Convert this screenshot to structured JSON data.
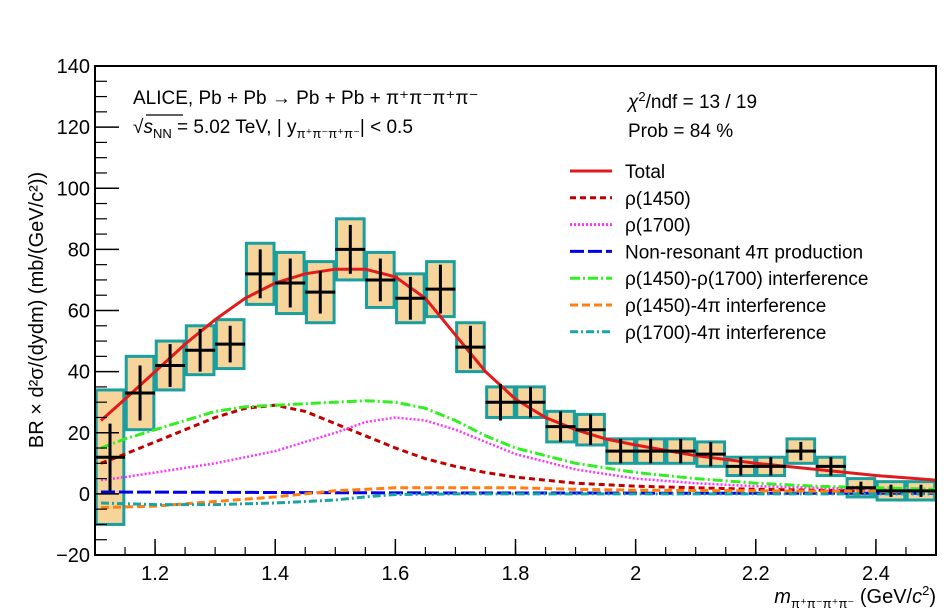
{
  "chart_data": {
    "type": "line",
    "xlabel_parts": [
      "m",
      "π⁺π⁻π⁺π⁻",
      " (GeV/",
      "c",
      "2",
      ")"
    ],
    "ylabel": "BR × d²σ/(dydm) (mb/(GeV/c²))",
    "xlim": [
      1.1,
      2.5
    ],
    "ylim": [
      -20,
      140
    ],
    "xticks": [
      1.2,
      1.4,
      1.6,
      1.8,
      2,
      2.2,
      2.4
    ],
    "yticks": [
      -20,
      0,
      20,
      40,
      60,
      80,
      100,
      120,
      140
    ],
    "grid": false,
    "annotations": {
      "line1": "ALICE, Pb + Pb → Pb + Pb + π⁺π⁻π⁺π⁻",
      "line2_parts": [
        "√",
        "s",
        "NN",
        " = 5.02 TeV, | y",
        "π⁺π⁻π⁺π⁻",
        "| < 0.5"
      ],
      "chi2_parts": [
        "χ",
        "2",
        "/ndf = 13 / 19"
      ],
      "prob": "Prob = 84 %"
    },
    "data_points": {
      "x": [
        1.125,
        1.175,
        1.225,
        1.275,
        1.325,
        1.375,
        1.425,
        1.475,
        1.525,
        1.575,
        1.625,
        1.675,
        1.725,
        1.775,
        1.825,
        1.875,
        1.925,
        1.975,
        2.025,
        2.075,
        2.125,
        2.175,
        2.225,
        2.275,
        2.325,
        2.375,
        2.425,
        2.475
      ],
      "y": [
        12,
        33,
        42,
        47,
        49,
        72,
        69,
        66,
        80,
        70,
        64,
        67,
        48,
        30,
        30,
        22,
        21,
        14,
        14,
        14,
        13,
        9,
        9,
        14,
        9,
        2,
        1,
        1
      ],
      "stat": [
        11,
        9,
        7,
        7,
        6,
        8,
        8,
        7,
        8,
        7,
        7,
        8,
        7,
        6,
        5,
        5,
        5,
        4,
        4,
        4,
        4,
        3,
        3,
        3,
        3,
        2,
        2,
        2
      ],
      "sys": [
        22,
        12,
        8,
        8,
        8,
        10,
        10,
        10,
        10,
        9,
        8,
        9,
        8,
        5,
        5,
        5,
        5,
        4,
        4,
        4,
        4,
        3,
        3,
        4,
        3,
        3,
        3,
        3
      ]
    },
    "series": [
      {
        "name": "Total",
        "color": "#e31a1c",
        "dash": "",
        "width": 3,
        "x": [
          1.11,
          1.15,
          1.2,
          1.25,
          1.3,
          1.35,
          1.4,
          1.45,
          1.5,
          1.55,
          1.6,
          1.65,
          1.7,
          1.75,
          1.8,
          1.85,
          1.9,
          1.95,
          2.0,
          2.1,
          2.2,
          2.3,
          2.4,
          2.5
        ],
        "y": [
          24,
          31,
          40,
          49,
          57,
          64,
          69,
          72,
          73.5,
          73.5,
          71,
          64,
          52,
          40,
          31,
          25,
          21,
          18,
          16,
          12.5,
          10,
          8,
          6,
          4.5
        ]
      },
      {
        "name": "ρ(1450)",
        "color": "#c00000",
        "dash": "6,4",
        "width": 3,
        "x": [
          1.11,
          1.15,
          1.2,
          1.25,
          1.3,
          1.35,
          1.4,
          1.45,
          1.5,
          1.55,
          1.6,
          1.65,
          1.7,
          1.75,
          1.8,
          1.9,
          2.0,
          2.1,
          2.2,
          2.3,
          2.4,
          2.5
        ],
        "y": [
          10,
          13,
          17,
          21,
          25,
          28,
          29,
          27,
          23,
          19,
          15,
          11.5,
          9,
          7,
          5.5,
          3.5,
          2.5,
          2,
          1.5,
          1.2,
          1,
          0.8
        ]
      },
      {
        "name": "ρ(1700)",
        "color": "#ff33ff",
        "dash": "2,2",
        "width": 2.5,
        "x": [
          1.11,
          1.15,
          1.2,
          1.25,
          1.3,
          1.35,
          1.4,
          1.45,
          1.5,
          1.55,
          1.6,
          1.65,
          1.7,
          1.75,
          1.8,
          1.9,
          2.0,
          2.1,
          2.2,
          2.3,
          2.4,
          2.5
        ],
        "y": [
          4.5,
          5.5,
          7,
          8.5,
          10,
          12,
          14,
          17,
          20,
          23.5,
          25,
          24,
          21,
          17,
          13,
          8,
          5,
          3.5,
          2.5,
          2,
          1.5,
          1
        ]
      },
      {
        "name": "Non-resonant 4π production",
        "color": "#0000ee",
        "dash": "14,4",
        "width": 3,
        "x": [
          1.11,
          1.3,
          1.5,
          1.7,
          1.9,
          2.1,
          2.3,
          2.5
        ],
        "y": [
          0.6,
          0.5,
          0.4,
          0.3,
          0.3,
          0.2,
          0.2,
          0.2
        ]
      },
      {
        "name": "ρ(1450)-ρ(1700) interference",
        "color": "#33ee22",
        "dash": "10,3,2,3",
        "width": 3,
        "x": [
          1.11,
          1.15,
          1.2,
          1.25,
          1.3,
          1.35,
          1.4,
          1.45,
          1.5,
          1.55,
          1.6,
          1.65,
          1.7,
          1.75,
          1.8,
          1.9,
          2.0,
          2.1,
          2.2,
          2.3,
          2.4,
          2.5
        ],
        "y": [
          15,
          18,
          21,
          24,
          27,
          28.5,
          29,
          29.5,
          30,
          30.5,
          30,
          28,
          24,
          19,
          15,
          10,
          7,
          5,
          3.5,
          2.5,
          2,
          1.5
        ]
      },
      {
        "name": "ρ(1450)-4π interference",
        "color": "#ff7f0e",
        "dash": "8,4",
        "width": 3,
        "x": [
          1.11,
          1.2,
          1.3,
          1.4,
          1.5,
          1.6,
          1.7,
          1.8,
          1.9,
          2.0,
          2.2,
          2.4,
          2.5
        ],
        "y": [
          -4.5,
          -4,
          -2.5,
          -1,
          1,
          2,
          2,
          2,
          1.5,
          1.2,
          1,
          0.8,
          0.5
        ]
      },
      {
        "name": "ρ(1700)-4π interference",
        "color": "#1aa3a3",
        "dash": "8,3,2,3",
        "width": 3,
        "x": [
          1.11,
          1.2,
          1.3,
          1.4,
          1.5,
          1.55,
          1.6,
          1.7,
          1.8,
          2.0,
          2.2,
          2.4,
          2.5
        ],
        "y": [
          -3,
          -3.5,
          -3.5,
          -3,
          -2,
          -1,
          -0.2,
          0,
          0,
          0,
          0,
          0,
          0
        ]
      }
    ]
  }
}
